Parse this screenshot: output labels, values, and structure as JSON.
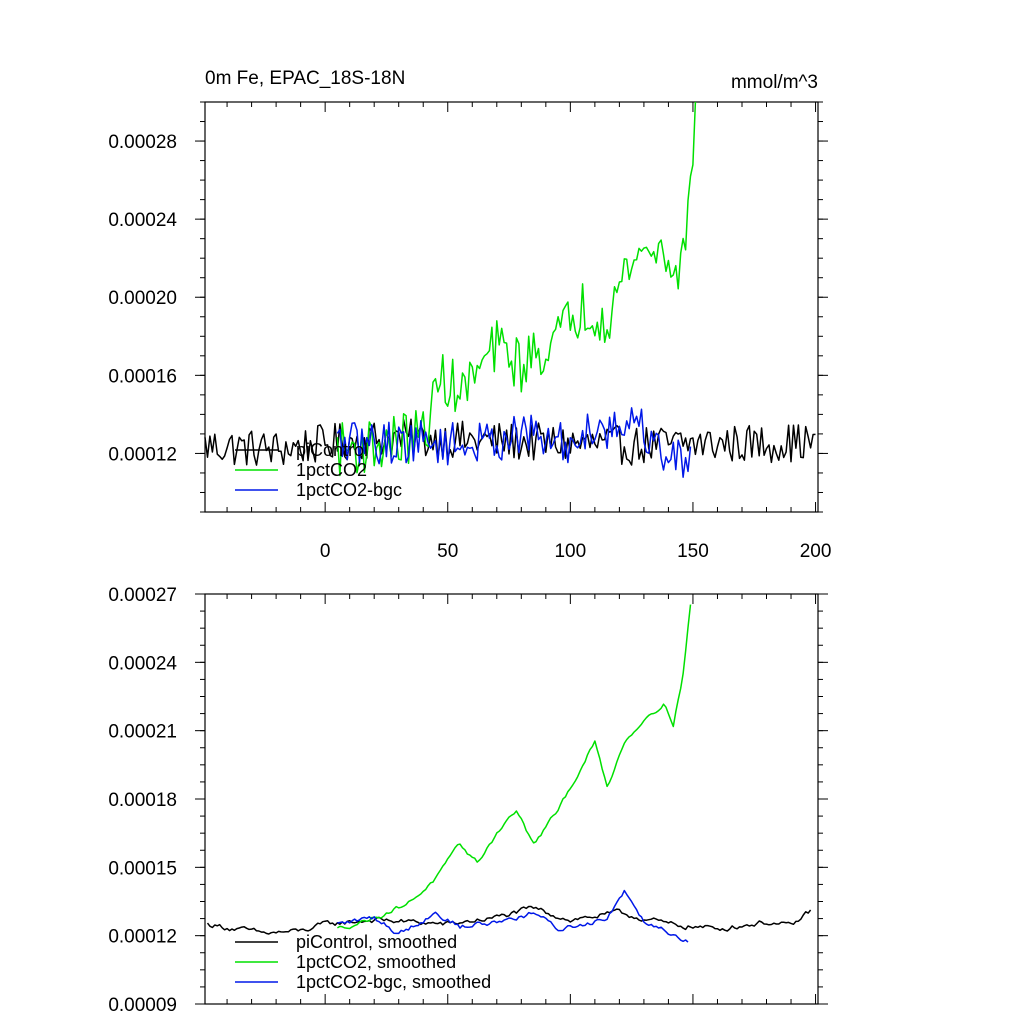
{
  "chart_data": [
    {
      "type": "line",
      "title_left": "0m Fe, EPAC_18S-18N",
      "title_right": "mmol/m^3",
      "xlim": [
        -49,
        201
      ],
      "ylim": [
        9e-05,
        0.0003
      ],
      "x_ticks": [
        0,
        50,
        100,
        150,
        200
      ],
      "x_tick_labels": [
        "0",
        "50",
        "100",
        "150",
        "200"
      ],
      "y_ticks": [
        0.00012,
        0.00016,
        0.0002,
        0.00024,
        0.00028
      ],
      "y_tick_labels": [
        "0.00012",
        "0.00016",
        "0.00020",
        "0.00024",
        "0.00028"
      ],
      "legend": [
        "piControl",
        "1pctCO2",
        "1pctCO2-bgc"
      ],
      "series": [
        {
          "name": "piControl",
          "color": "#000000",
          "x_start": -49,
          "x_end": 200,
          "anchors": [
            [
              -49,
              0.000124
            ],
            [
              -20,
              0.000122
            ],
            [
              0,
              0.000125
            ],
            [
              25,
              0.000128
            ],
            [
              50,
              0.000127
            ],
            [
              75,
              0.000126
            ],
            [
              100,
              0.000125
            ],
            [
              125,
              0.000124
            ],
            [
              150,
              0.000125
            ],
            [
              175,
              0.000125
            ],
            [
              200,
              0.000126
            ]
          ],
          "noise": 1e-05
        },
        {
          "name": "1pctCO2",
          "color": "#00e000",
          "x_start": 5,
          "x_end": 151,
          "anchors": [
            [
              5,
              0.000122
            ],
            [
              25,
              0.000125
            ],
            [
              40,
              0.00013
            ],
            [
              48,
              0.00016
            ],
            [
              55,
              0.00015
            ],
            [
              70,
              0.000175
            ],
            [
              80,
              0.000165
            ],
            [
              95,
              0.00018
            ],
            [
              105,
              0.000195
            ],
            [
              115,
              0.00019
            ],
            [
              125,
              0.00022
            ],
            [
              135,
              0.000225
            ],
            [
              145,
              0.000215
            ],
            [
              148,
              0.00024
            ],
            [
              151,
              0.0003
            ]
          ],
          "noise": 1.4e-05
        },
        {
          "name": "1pctCO2-bgc",
          "color": "#0018e8",
          "x_start": 5,
          "x_end": 149,
          "anchors": [
            [
              5,
              0.000125
            ],
            [
              40,
              0.000126
            ],
            [
              60,
              0.000124
            ],
            [
              80,
              0.00013
            ],
            [
              100,
              0.000124
            ],
            [
              110,
              0.000135
            ],
            [
              120,
              0.000132
            ],
            [
              125,
              0.00014
            ],
            [
              135,
              0.000123
            ],
            [
              149,
              0.000115
            ]
          ],
          "noise": 1.1e-05
        }
      ]
    },
    {
      "type": "line",
      "xlim": [
        -49,
        201
      ],
      "ylim": [
        9e-05,
        0.00027
      ],
      "x_ticks": [
        0,
        50,
        100,
        150,
        200
      ],
      "y_ticks": [
        9e-05,
        0.00012,
        0.00015,
        0.00018,
        0.00021,
        0.00024,
        0.00027
      ],
      "y_tick_labels": [
        "0.00009",
        "0.00012",
        "0.00015",
        "0.00018",
        "0.00021",
        "0.00024",
        "0.00027"
      ],
      "legend": [
        "piControl, smoothed",
        "1pctCO2, smoothed",
        "1pctCO2-bgc, smoothed"
      ],
      "series": [
        {
          "name": "piControl, smoothed",
          "color": "#000000",
          "x_start": -48,
          "x_end": 198,
          "anchors": [
            [
              -48,
              0.000125
            ],
            [
              -25,
              0.000121
            ],
            [
              -10,
              0.000122
            ],
            [
              0,
              0.000125
            ],
            [
              20,
              0.000127
            ],
            [
              50,
              0.000125
            ],
            [
              70,
              0.000128
            ],
            [
              85,
              0.000132
            ],
            [
              100,
              0.000127
            ],
            [
              120,
              0.00013
            ],
            [
              140,
              0.000125
            ],
            [
              160,
              0.000123
            ],
            [
              180,
              0.000126
            ],
            [
              190,
              0.000124
            ],
            [
              198,
              0.000131
            ]
          ],
          "noise": 2.5e-06
        },
        {
          "name": "1pctCO2, smoothed",
          "color": "#00e000",
          "x_start": 5,
          "x_end": 149,
          "anchors": [
            [
              5,
              0.000123
            ],
            [
              15,
              0.000126
            ],
            [
              25,
              0.00013
            ],
            [
              35,
              0.000135
            ],
            [
              45,
              0.000145
            ],
            [
              55,
              0.00016
            ],
            [
              62,
              0.000152
            ],
            [
              72,
              0.000168
            ],
            [
              78,
              0.000175
            ],
            [
              85,
              0.00016
            ],
            [
              95,
              0.000175
            ],
            [
              105,
              0.000195
            ],
            [
              110,
              0.000205
            ],
            [
              115,
              0.000185
            ],
            [
              122,
              0.000205
            ],
            [
              130,
              0.000215
            ],
            [
              138,
              0.000222
            ],
            [
              142,
              0.000213
            ],
            [
              146,
              0.000235
            ],
            [
              149,
              0.000265
            ]
          ],
          "noise": 2e-06
        },
        {
          "name": "1pctCO2-bgc, smoothed",
          "color": "#0018e8",
          "x_start": 5,
          "x_end": 148,
          "anchors": [
            [
              5,
              0.000125
            ],
            [
              20,
              0.000128
            ],
            [
              30,
              0.000121
            ],
            [
              45,
              0.00013
            ],
            [
              55,
              0.000124
            ],
            [
              70,
              0.000126
            ],
            [
              85,
              0.00013
            ],
            [
              95,
              0.000123
            ],
            [
              105,
              0.000125
            ],
            [
              115,
              0.000128
            ],
            [
              122,
              0.00014
            ],
            [
              130,
              0.000127
            ],
            [
              140,
              0.000122
            ],
            [
              148,
              0.000118
            ]
          ],
          "noise": 2.5e-06
        }
      ]
    }
  ]
}
